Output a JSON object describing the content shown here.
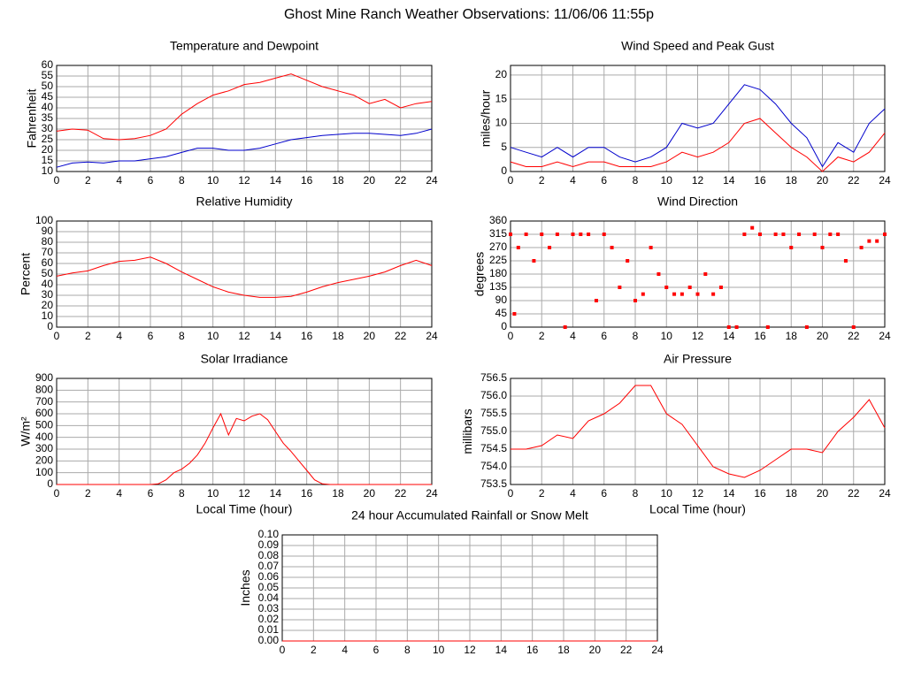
{
  "title": "Ghost Mine Ranch Weather Observations: 11/06/06 11:55p",
  "chart_data": [
    {
      "type": "line",
      "title": "Temperature and Dewpoint",
      "ylabel": "Fahrenheit",
      "x": [
        0,
        1,
        2,
        3,
        4,
        5,
        6,
        7,
        8,
        9,
        10,
        11,
        12,
        13,
        14,
        15,
        16,
        17,
        18,
        19,
        20,
        21,
        22,
        23,
        24
      ],
      "series": [
        {
          "color": "#ff0000",
          "values": [
            29,
            30,
            29.5,
            25.5,
            25,
            25.5,
            27,
            30,
            37,
            42,
            46,
            48,
            51,
            52,
            54,
            56,
            53,
            50,
            48,
            46,
            42,
            44,
            40,
            42,
            43
          ]
        },
        {
          "color": "#0000cc",
          "values": [
            12,
            14,
            14.5,
            14,
            15,
            15,
            16,
            17,
            19,
            21,
            21,
            20,
            20,
            21,
            23,
            25,
            26,
            27,
            27.5,
            28,
            28,
            27.5,
            27,
            28,
            30
          ]
        }
      ],
      "xlim": [
        0,
        24
      ],
      "ylim": [
        10,
        60
      ],
      "xticks": [
        0,
        2,
        4,
        6,
        8,
        10,
        12,
        14,
        16,
        18,
        20,
        22,
        24
      ],
      "yticks": [
        10,
        15,
        20,
        25,
        30,
        35,
        40,
        45,
        50,
        55,
        60
      ],
      "grid": true
    },
    {
      "type": "line",
      "title": "Wind Speed and Peak Gust",
      "ylabel": "miles/hour",
      "x": [
        0,
        1,
        2,
        3,
        4,
        5,
        6,
        7,
        8,
        9,
        10,
        11,
        12,
        13,
        14,
        15,
        16,
        17,
        18,
        19,
        20,
        21,
        22,
        23,
        24
      ],
      "series": [
        {
          "color": "#0000cc",
          "values": [
            5,
            4,
            3,
            5,
            3,
            5,
            5,
            3,
            2,
            3,
            5,
            10,
            9,
            10,
            14,
            18,
            17,
            14,
            10,
            7,
            1,
            6,
            4,
            10,
            13
          ]
        },
        {
          "color": "#ff0000",
          "values": [
            2,
            1,
            1,
            2,
            1,
            2,
            2,
            1,
            1,
            1,
            2,
            4,
            3,
            4,
            6,
            10,
            11,
            8,
            5,
            3,
            0,
            3,
            2,
            4,
            8
          ]
        }
      ],
      "xlim": [
        0,
        24
      ],
      "ylim": [
        0,
        22
      ],
      "xticks": [
        0,
        2,
        4,
        6,
        8,
        10,
        12,
        14,
        16,
        18,
        20,
        22,
        24
      ],
      "yticks": [
        0,
        5,
        10,
        15,
        20
      ],
      "grid": true
    },
    {
      "type": "line",
      "title": "Relative Humidity",
      "ylabel": "Percent",
      "x": [
        0,
        1,
        2,
        3,
        4,
        5,
        6,
        7,
        8,
        9,
        10,
        11,
        12,
        13,
        14,
        15,
        16,
        17,
        18,
        19,
        20,
        21,
        22,
        23,
        24
      ],
      "series": [
        {
          "color": "#ff0000",
          "values": [
            48,
            51,
            53,
            58,
            62,
            63,
            66,
            60,
            52,
            45,
            38,
            33,
            30,
            28,
            28,
            29,
            33,
            38,
            42,
            45,
            48,
            52,
            58,
            63,
            58
          ]
        }
      ],
      "xlim": [
        0,
        24
      ],
      "ylim": [
        0,
        100
      ],
      "xticks": [
        0,
        2,
        4,
        6,
        8,
        10,
        12,
        14,
        16,
        18,
        20,
        22,
        24
      ],
      "yticks": [
        0,
        10,
        20,
        30,
        40,
        50,
        60,
        70,
        80,
        90,
        100
      ],
      "grid": true
    },
    {
      "type": "scatter",
      "title": "Wind Direction",
      "ylabel": "degrees",
      "x": [
        0,
        0.25,
        0.5,
        1,
        1.5,
        2,
        2.5,
        3,
        3.5,
        4,
        4.5,
        5,
        5.5,
        6,
        6.5,
        7,
        7.5,
        8,
        8.5,
        9,
        9.5,
        10,
        10.5,
        11,
        11.5,
        12,
        12.5,
        13,
        13.5,
        14,
        14.5,
        15,
        15.5,
        16,
        16.5,
        17,
        17.5,
        18,
        18.5,
        19,
        19.5,
        20,
        20.5,
        21,
        21.5,
        22,
        22.5,
        23,
        23.5,
        24
      ],
      "series": [
        {
          "color": "#ff0000",
          "values": [
            315,
            45,
            270,
            315,
            225,
            315,
            270,
            315,
            0,
            315,
            315,
            315,
            90,
            315,
            270,
            135,
            225,
            90,
            112,
            270,
            180,
            135,
            112,
            112,
            135,
            112,
            180,
            112,
            135,
            0,
            0,
            315,
            337,
            315,
            0,
            315,
            315,
            270,
            315,
            0,
            315,
            270,
            315,
            315,
            225,
            0,
            270,
            292,
            292,
            315
          ]
        }
      ],
      "xlim": [
        0,
        24
      ],
      "ylim": [
        0,
        360
      ],
      "xticks": [
        0,
        2,
        4,
        6,
        8,
        10,
        12,
        14,
        16,
        18,
        20,
        22,
        24
      ],
      "yticks": [
        0,
        45,
        90,
        135,
        180,
        225,
        270,
        315,
        360
      ],
      "grid": true
    },
    {
      "type": "line",
      "title": "Solar Irradiance",
      "ylabel": "W/m²",
      "xlabel": "Local Time (hour)",
      "x": [
        0,
        0.5,
        1,
        1.5,
        2,
        2.5,
        3,
        3.5,
        4,
        4.5,
        5,
        5.5,
        6,
        6.5,
        7,
        7.5,
        8,
        8.5,
        9,
        9.5,
        10,
        10.5,
        11,
        11.5,
        12,
        12.5,
        13,
        13.5,
        14,
        14.5,
        15,
        15.5,
        16,
        16.5,
        17,
        17.5,
        18,
        18.5,
        19,
        19.5,
        20,
        20.5,
        21,
        21.5,
        22,
        22.5,
        23,
        23.5,
        24
      ],
      "series": [
        {
          "color": "#ff0000",
          "values": [
            0,
            0,
            0,
            0,
            0,
            0,
            0,
            0,
            0,
            0,
            0,
            0,
            0,
            5,
            40,
            100,
            130,
            180,
            250,
            350,
            480,
            600,
            420,
            560,
            540,
            580,
            600,
            550,
            450,
            350,
            280,
            200,
            120,
            40,
            5,
            0,
            0,
            0,
            0,
            0,
            0,
            0,
            0,
            0,
            0,
            0,
            0,
            0,
            0
          ]
        }
      ],
      "xlim": [
        0,
        24
      ],
      "ylim": [
        0,
        900
      ],
      "xticks": [
        0,
        2,
        4,
        6,
        8,
        10,
        12,
        14,
        16,
        18,
        20,
        22,
        24
      ],
      "yticks": [
        0,
        100,
        200,
        300,
        400,
        500,
        600,
        700,
        800,
        900
      ],
      "grid": true
    },
    {
      "type": "line",
      "title": "Air Pressure",
      "ylabel": "millibars",
      "xlabel": "Local Time (hour)",
      "x": [
        0,
        1,
        2,
        3,
        4,
        5,
        6,
        7,
        8,
        9,
        10,
        11,
        12,
        13,
        14,
        15,
        16,
        17,
        18,
        19,
        20,
        21,
        22,
        23,
        24
      ],
      "series": [
        {
          "color": "#ff0000",
          "values": [
            754.5,
            754.5,
            754.6,
            754.9,
            754.8,
            755.3,
            755.5,
            755.8,
            756.3,
            756.3,
            755.5,
            755.2,
            754.6,
            754.0,
            753.8,
            753.7,
            753.9,
            754.2,
            754.5,
            754.5,
            754.4,
            755.0,
            755.4,
            755.9,
            755.1
          ]
        }
      ],
      "xlim": [
        0,
        24
      ],
      "ylim": [
        753.5,
        756.5
      ],
      "xticks": [
        0,
        2,
        4,
        6,
        8,
        10,
        12,
        14,
        16,
        18,
        20,
        22,
        24
      ],
      "yticks": [
        753.5,
        {
          "value": 754,
          "label": "754.0"
        },
        754.5,
        {
          "value": 755,
          "label": "755.0"
        },
        755.5,
        {
          "value": 756,
          "label": "756.0"
        },
        756.5
      ],
      "grid": true
    },
    {
      "type": "line",
      "title": "24 hour Accumulated Rainfall or Snow Melt",
      "ylabel": "Inches",
      "x": [
        0,
        24
      ],
      "series": [
        {
          "color": "#ff0000",
          "values": [
            0,
            0
          ]
        }
      ],
      "xlim": [
        0,
        24
      ],
      "ylim": [
        0,
        0.1
      ],
      "xticks": [
        0,
        2,
        4,
        6,
        8,
        10,
        12,
        14,
        16,
        18,
        20,
        22,
        24
      ],
      "yticks": [
        {
          "value": 0,
          "label": "0.00"
        },
        {
          "value": 0.01,
          "label": "0.01"
        },
        {
          "value": 0.02,
          "label": "0.02"
        },
        {
          "value": 0.03,
          "label": "0.03"
        },
        {
          "value": 0.04,
          "label": "0.04"
        },
        {
          "value": 0.05,
          "label": "0.05"
        },
        {
          "value": 0.06,
          "label": "0.06"
        },
        {
          "value": 0.07,
          "label": "0.07"
        },
        {
          "value": 0.08,
          "label": "0.08"
        },
        {
          "value": 0.09,
          "label": "0.09"
        },
        {
          "value": 0.1,
          "label": "0.10"
        }
      ],
      "grid": true
    }
  ]
}
